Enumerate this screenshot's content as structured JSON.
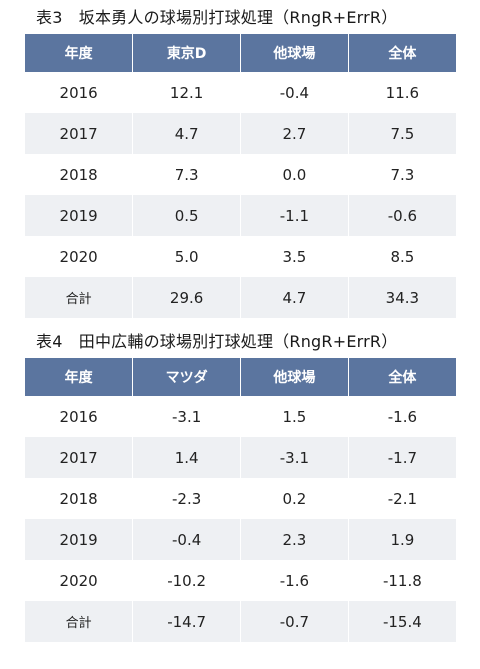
{
  "table3": {
    "caption": "表3　坂本勇人の球場別打球処理（RngR+ErrR）",
    "headers": [
      "年度",
      "東京D",
      "他球場",
      "全体"
    ],
    "rows": [
      [
        "2016",
        "12.1",
        "-0.4",
        "11.6"
      ],
      [
        "2017",
        "4.7",
        "2.7",
        "7.5"
      ],
      [
        "2018",
        "7.3",
        "0.0",
        "7.3"
      ],
      [
        "2019",
        "0.5",
        "-1.1",
        "-0.6"
      ],
      [
        "2020",
        "5.0",
        "3.5",
        "8.5"
      ],
      [
        "合計",
        "29.6",
        "4.7",
        "34.3"
      ]
    ]
  },
  "table4": {
    "caption": "表4　田中広輔の球場別打球処理（RngR+ErrR）",
    "headers": [
      "年度",
      "マツダ",
      "他球場",
      "全体"
    ],
    "rows": [
      [
        "2016",
        "-3.1",
        "1.5",
        "-1.6"
      ],
      [
        "2017",
        "1.4",
        "-3.1",
        "-1.7"
      ],
      [
        "2018",
        "-2.3",
        "0.2",
        "-2.1"
      ],
      [
        "2019",
        "-0.4",
        "2.3",
        "1.9"
      ],
      [
        "2020",
        "-10.2",
        "-1.6",
        "-11.8"
      ],
      [
        "合計",
        "-14.7",
        "-0.7",
        "-15.4"
      ]
    ]
  }
}
